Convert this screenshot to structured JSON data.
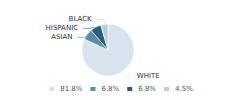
{
  "chart_data": {
    "type": "pie",
    "categories": [
      "WHITE",
      "ASIAN",
      "HISPANIC",
      "BLACK"
    ],
    "values": [
      81.8,
      6.8,
      6.8,
      4.5
    ],
    "value_labels": [
      "81.8%",
      "6.8%",
      "6.8%",
      "4.5%"
    ],
    "colors": [
      "#d6e4ee",
      "#5a8da6",
      "#2d5e78",
      "#b8cfd9"
    ],
    "legend": "bottom"
  }
}
